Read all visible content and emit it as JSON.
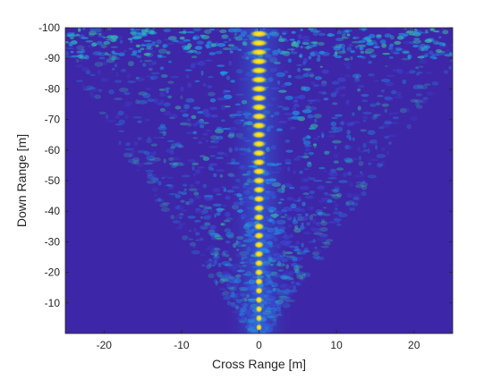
{
  "chart_data": {
    "type": "heatmap",
    "title": "",
    "xlabel": "Cross Range [m]",
    "ylabel": "Down Range [m]",
    "xlim": [
      -25,
      25
    ],
    "ylim": [
      -100,
      0
    ],
    "y_reversed": true,
    "x_ticks": [
      -20,
      -10,
      0,
      10,
      20
    ],
    "y_ticks": [
      -100,
      -90,
      -80,
      -70,
      -60,
      -50,
      -40,
      -30,
      -20,
      -10
    ],
    "colormap": "parula",
    "colorbar": false,
    "colors": {
      "background": "#3e26a8",
      "low": "#3b4bd6",
      "mid": "#1e9ae9",
      "high": "#35c0a6",
      "peak": "#f9d92c",
      "max": "#f9fb0e"
    },
    "peaks": {
      "cross_range": 0,
      "down_range": [
        -2,
        -5,
        -8,
        -11,
        -14,
        -17,
        -20,
        -23,
        -26,
        -29,
        -32,
        -35,
        -38,
        -41,
        -44,
        -47,
        -50,
        -53,
        -56,
        -59,
        -62,
        -65,
        -68,
        -71,
        -74,
        -77,
        -80,
        -83,
        -86,
        -89,
        -92,
        -95,
        -98
      ]
    },
    "grid": false
  }
}
